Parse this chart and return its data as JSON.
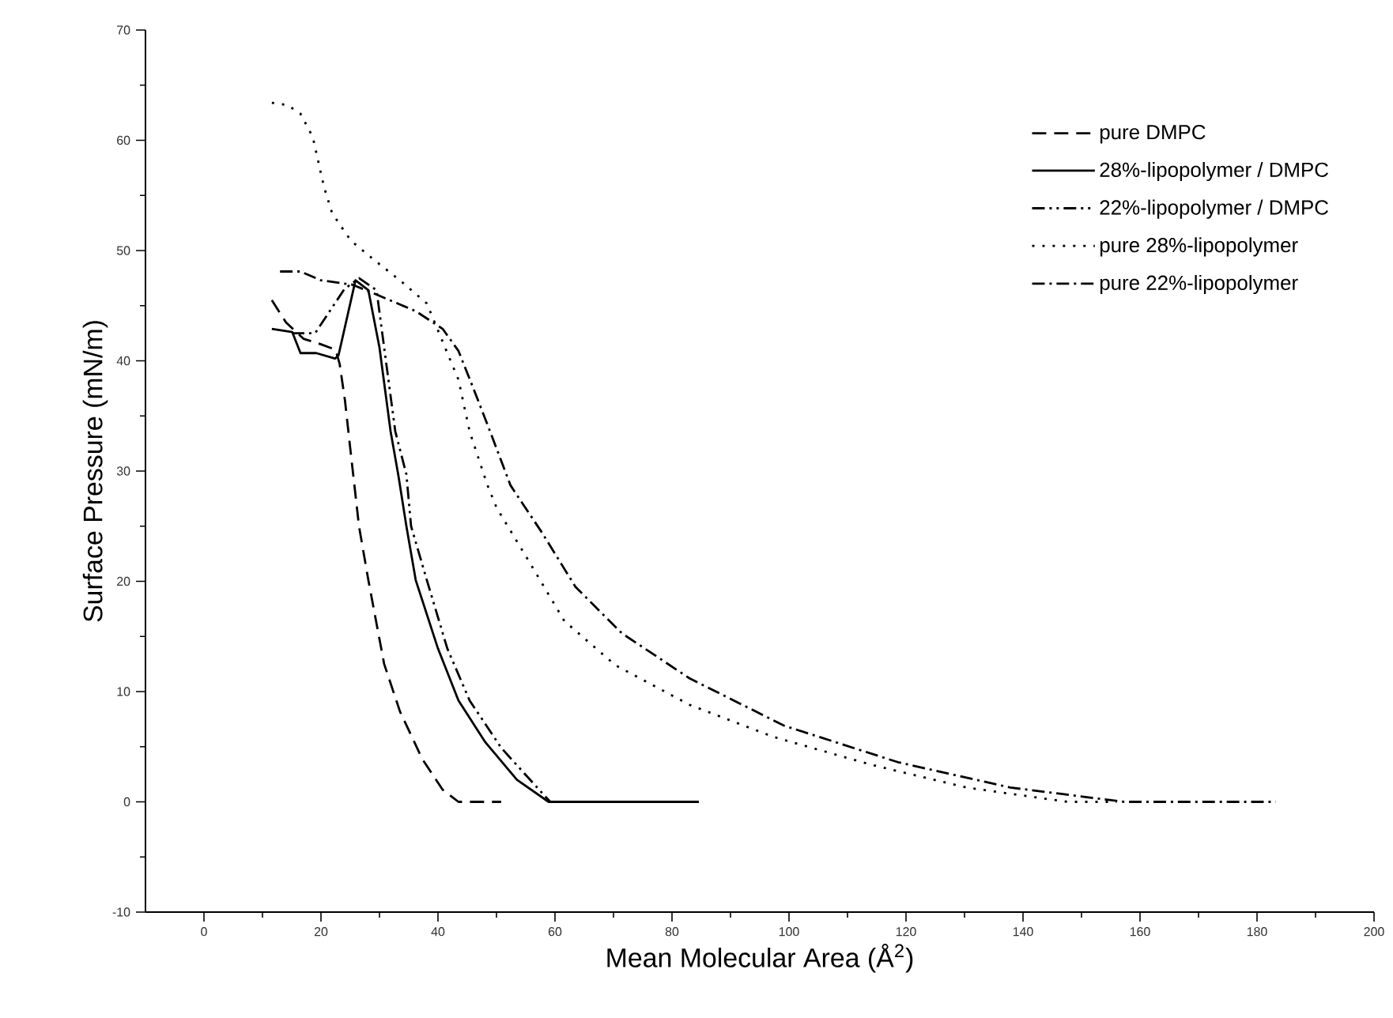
{
  "chart_data": {
    "type": "line",
    "xlabel": "Mean Molecular Area (Å$^{2}$)",
    "ylabel": "Surface Pressure (mN/m)",
    "xlim": [
      -10,
      200
    ],
    "xticks": [
      0,
      20,
      40,
      60,
      80,
      100,
      120,
      140,
      160,
      180,
      200
    ],
    "ylim": [
      -10,
      70
    ],
    "yticks": [
      -10,
      0,
      10,
      20,
      30,
      40,
      50,
      60,
      70
    ],
    "grid": false,
    "legend": "top right",
    "marker": "none",
    "series": [
      {
        "name": "pure DMPC",
        "color": "#000000",
        "line_style": "dashed",
        "x": [
          11.6,
          14,
          17,
          20,
          22.5,
          23.2,
          24.1,
          25.1,
          26.5,
          28.1,
          30.8,
          33.5,
          37.3,
          40.8,
          43.5,
          50.8
        ],
        "values": [
          45.5,
          43.5,
          42,
          41.5,
          41,
          39.7,
          36.4,
          31.6,
          25.0,
          20.1,
          12.5,
          8.2,
          3.9,
          1.1,
          0,
          0
        ]
      },
      {
        "name": "28%-lipopolymer / DMPC",
        "color": "#000000",
        "line_style": "solid",
        "x": [
          11.6,
          15.1,
          16.5,
          19.2,
          22.4,
          23,
          25.9,
          28.1,
          30,
          31.9,
          33.2,
          34.6,
          36.2,
          40,
          43.5,
          48.1,
          53.5,
          58.9,
          84.6
        ],
        "values": [
          42.9,
          42.6,
          40.7,
          40.7,
          40.2,
          40.5,
          47.3,
          46.4,
          41.2,
          33.6,
          29.7,
          25.0,
          20.1,
          13.9,
          9.2,
          5.4,
          2.0,
          0,
          0
        ]
      },
      {
        "name": "22%-lipopolymer / DMPC",
        "color": "#000000",
        "line_style": "dashdotdot",
        "x": [
          15,
          19,
          21.5,
          24,
          26.5,
          29.5,
          30.8,
          32.7,
          34.6,
          35.4,
          38.1,
          41.6,
          45.4,
          50.8,
          57.8,
          59.2
        ],
        "values": [
          42.5,
          42.5,
          44.5,
          46.5,
          47.5,
          46.4,
          41.2,
          33.6,
          29.7,
          25.0,
          20.1,
          13.9,
          9.2,
          4.9,
          0.8,
          0
        ]
      },
      {
        "name": "pure 28%-lipopolymer",
        "color": "#000000",
        "line_style": "dotted",
        "x": [
          11.6,
          14.3,
          16.5,
          18.6,
          20.5,
          21.9,
          25.1,
          29.2,
          33.5,
          38.1,
          41.6,
          43.5,
          45.4,
          48.4,
          50,
          55.9,
          61.6,
          70.3,
          83,
          97.3,
          113.8,
          130.3,
          147.6,
          156
        ],
        "values": [
          63.4,
          63.2,
          62.4,
          60.3,
          55.8,
          53.4,
          50.9,
          49.1,
          47.3,
          45.2,
          40.7,
          38.3,
          33.6,
          28.8,
          26.7,
          21.5,
          16.4,
          12.4,
          8.8,
          5.9,
          3.4,
          1.3,
          0,
          0
        ]
      },
      {
        "name": "pure 22%-lipopolymer",
        "color": "#000000",
        "line_style": "dashdot",
        "x": [
          13,
          16.5,
          20,
          25.4,
          30,
          36.2,
          40.8,
          43.5,
          46.2,
          48.9,
          52.4,
          57.8,
          63.5,
          71.4,
          83,
          99.2,
          118.6,
          137.8,
          157.3,
          183.2
        ],
        "values": [
          48.1,
          48.1,
          47.3,
          46.9,
          45.9,
          44.5,
          42.9,
          40.9,
          37.3,
          33.6,
          28.7,
          24.4,
          19.5,
          15.3,
          11.2,
          6.9,
          3.6,
          1.3,
          0,
          0
        ]
      }
    ]
  }
}
